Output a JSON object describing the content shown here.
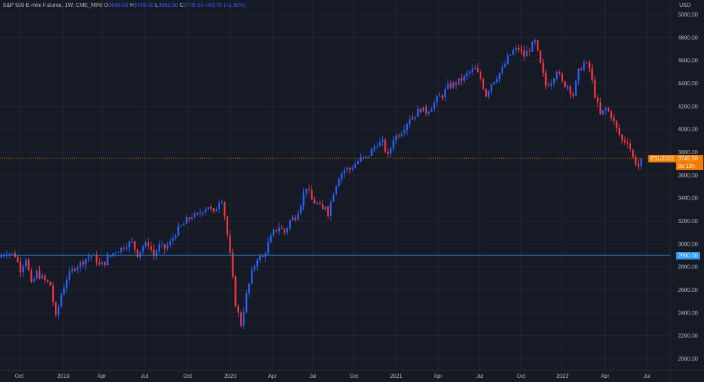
{
  "legend": {
    "title": "S&P 500 E-mini Futures, 1W, CME_MINI",
    "o_label": "O",
    "open": "3684.00",
    "h_label": "H",
    "high": "3749.00",
    "l_label": "L",
    "low": "3661.50",
    "c_label": "C",
    "close": "3745.50",
    "change": "+69.75 (+1.90%)"
  },
  "price_scale": {
    "currency": "USD",
    "ticks": [
      2000,
      2200,
      2400,
      2600,
      2800,
      3000,
      3200,
      3400,
      3600,
      3800,
      4000,
      4200,
      4400,
      4600,
      4800,
      5000
    ],
    "tick_labels": [
      "2000.00",
      "2200.00",
      "2400.00",
      "2600.00",
      "2800.00",
      "3000.00",
      "3200.00",
      "3400.00",
      "3600.00",
      "3800.00",
      "4000.00",
      "4200.00",
      "4400.00",
      "4600.00",
      "4800.00",
      "5000.00"
    ],
    "symbol_tag": "ESU2022",
    "last_price": "3745.50",
    "countdown": "3d 12h",
    "hline_price": "2900.00"
  },
  "time_scale": {
    "labels": [
      "Oct",
      "2019",
      "Apr",
      "Jul",
      "Oct",
      "2020",
      "Apr",
      "Jul",
      "Oct",
      "2021",
      "Apr",
      "Jul",
      "Oct",
      "2022",
      "Apr",
      "Jul"
    ]
  },
  "colors": {
    "background": "#161a25",
    "up": "#2962ff",
    "down": "#f23645",
    "grid": "#222633",
    "axis_text": "#b2b5be",
    "hline": "#2196f3",
    "last_price": "#f57c00"
  },
  "chart_data": {
    "type": "candlestick",
    "interval": "1W",
    "last_price": 3745.5,
    "horizontal_line": 2900,
    "y_range": [
      1950,
      5000
    ],
    "grid": true,
    "series_path": [
      [
        2900,
        0
      ],
      [
        2930,
        2
      ],
      [
        2900,
        5
      ],
      [
        2780,
        7
      ],
      [
        2880,
        9
      ],
      [
        2640,
        11
      ],
      [
        2750,
        13
      ],
      [
        2700,
        15
      ],
      [
        2640,
        18
      ],
      [
        2350,
        20
      ],
      [
        2560,
        22
      ],
      [
        2700,
        24
      ],
      [
        2800,
        27
      ],
      [
        2830,
        29
      ],
      [
        2870,
        31
      ],
      [
        2900,
        33
      ],
      [
        2860,
        35
      ],
      [
        2810,
        36
      ],
      [
        2840,
        38
      ],
      [
        2900,
        40
      ],
      [
        2940,
        42
      ],
      [
        2960,
        44
      ],
      [
        3000,
        46
      ],
      [
        3010,
        48
      ],
      [
        2910,
        50
      ],
      [
        2980,
        52
      ],
      [
        3000,
        54
      ],
      [
        2900,
        56
      ],
      [
        2980,
        58
      ],
      [
        2960,
        60
      ],
      [
        3010,
        62
      ],
      [
        3100,
        64
      ],
      [
        3150,
        66
      ],
      [
        3200,
        68
      ],
      [
        3250,
        70
      ],
      [
        3240,
        72
      ],
      [
        3300,
        74
      ],
      [
        3330,
        76
      ],
      [
        3260,
        78
      ],
      [
        3380,
        80
      ],
      [
        3390,
        81
      ],
      [
        3250,
        82
      ],
      [
        2900,
        84
      ],
      [
        2480,
        86
      ],
      [
        2300,
        88
      ],
      [
        2550,
        90
      ],
      [
        2750,
        92
      ],
      [
        2880,
        94
      ],
      [
        2880,
        96
      ],
      [
        3000,
        98
      ],
      [
        3100,
        100
      ],
      [
        3150,
        102
      ],
      [
        3100,
        104
      ],
      [
        3200,
        106
      ],
      [
        3240,
        108
      ],
      [
        3360,
        110
      ],
      [
        3500,
        112
      ],
      [
        3380,
        114
      ],
      [
        3350,
        116
      ],
      [
        3290,
        118
      ],
      [
        3340,
        119
      ],
      [
        3270,
        120
      ],
      [
        3460,
        122
      ],
      [
        3590,
        124
      ],
      [
        3650,
        126
      ],
      [
        3650,
        128
      ],
      [
        3700,
        130
      ],
      [
        3740,
        132
      ],
      [
        3750,
        134
      ],
      [
        3810,
        136
      ],
      [
        3880,
        138
      ],
      [
        3880,
        140
      ],
      [
        3760,
        142
      ],
      [
        3920,
        144
      ],
      [
        3960,
        146
      ],
      [
        4020,
        148
      ],
      [
        4100,
        150
      ],
      [
        4130,
        152
      ],
      [
        4180,
        154
      ],
      [
        4150,
        156
      ],
      [
        4200,
        158
      ],
      [
        4260,
        160
      ],
      [
        4300,
        162
      ],
      [
        4370,
        164
      ],
      [
        4390,
        166
      ],
      [
        4420,
        168
      ],
      [
        4450,
        170
      ],
      [
        4500,
        172
      ],
      [
        4520,
        174
      ],
      [
        4440,
        176
      ],
      [
        4300,
        178
      ],
      [
        4400,
        180
      ],
      [
        4460,
        182
      ],
      [
        4520,
        184
      ],
      [
        4620,
        186
      ],
      [
        4680,
        188
      ],
      [
        4700,
        190
      ],
      [
        4640,
        192
      ],
      [
        4700,
        194
      ],
      [
        4760,
        196
      ],
      [
        4560,
        198
      ],
      [
        4380,
        200
      ],
      [
        4420,
        202
      ],
      [
        4520,
        204
      ],
      [
        4400,
        206
      ],
      [
        4380,
        208
      ],
      [
        4300,
        210
      ],
      [
        4500,
        212
      ],
      [
        4580,
        214
      ],
      [
        4530,
        216
      ],
      [
        4300,
        218
      ],
      [
        4120,
        220
      ],
      [
        4180,
        222
      ],
      [
        4120,
        224
      ],
      [
        4000,
        226
      ],
      [
        3900,
        228
      ],
      [
        3900,
        230
      ],
      [
        3750,
        232
      ],
      [
        3680,
        234
      ],
      [
        3745.5,
        235
      ]
    ]
  }
}
